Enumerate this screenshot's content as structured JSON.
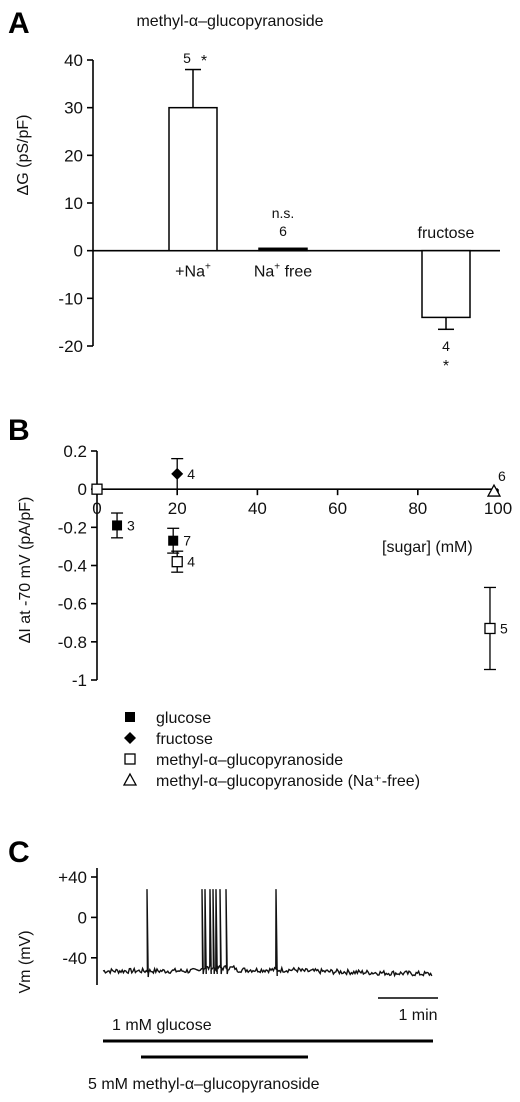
{
  "panels": {
    "a": "A",
    "b": "B",
    "c": "C"
  },
  "chart_data": [
    {
      "type": "bar",
      "title": "methyl-α–glucopyranoside",
      "ylabel": "ΔG (pS/pF)",
      "ylim": [
        -20,
        40
      ],
      "yticks": [
        -20,
        -10,
        0,
        10,
        20,
        30,
        40
      ],
      "categories": [
        "+Na⁺",
        "Na⁺ free",
        "fructose"
      ],
      "values": [
        30,
        0.5,
        -14
      ],
      "errors": [
        8,
        0.3,
        2.5
      ],
      "n_labels": [
        "5",
        "6",
        "4"
      ],
      "sig_labels": [
        "*",
        "n.s.",
        "*"
      ]
    },
    {
      "type": "scatter",
      "xlabel": "[sugar] (mM)",
      "ylabel": "ΔI at -70 mV (pA/pF)",
      "xlim": [
        0,
        100
      ],
      "ylim": [
        -1,
        0.2
      ],
      "xticks": [
        0,
        20,
        40,
        60,
        80,
        100
      ],
      "yticks": [
        -1,
        -0.8,
        -0.6,
        -0.4,
        -0.2,
        0,
        0.2
      ],
      "legend_position": "bottom-left",
      "series": [
        {
          "name": "glucose",
          "marker": "filled-square",
          "points": [
            {
              "x": 0,
              "y": 0,
              "err": 0,
              "n": ""
            },
            {
              "x": 5,
              "y": -0.19,
              "err": 0.065,
              "n": "3"
            },
            {
              "x": 19,
              "y": -0.27,
              "err": 0.065,
              "n": "7"
            }
          ]
        },
        {
          "name": "fructose",
          "marker": "filled-diamond",
          "points": [
            {
              "x": 20,
              "y": 0.08,
              "err": 0.08,
              "n": "4"
            }
          ]
        },
        {
          "name": "methyl-α–glucopyranoside",
          "marker": "open-square",
          "points": [
            {
              "x": 0,
              "y": 0,
              "err": 0,
              "n": ""
            },
            {
              "x": 20,
              "y": -0.38,
              "err": 0.055,
              "n": "4"
            },
            {
              "x": 98,
              "y": -0.73,
              "err": 0.215,
              "n": "5"
            }
          ]
        },
        {
          "name": "methyl-α–glucopyranoside (Na⁺-free)",
          "marker": "open-triangle",
          "points": [
            {
              "x": 99,
              "y": -0.01,
              "err": 0,
              "n": "6"
            }
          ]
        }
      ]
    },
    {
      "type": "line",
      "ylabel": "Vm (mV)",
      "ylim": [
        -60,
        40
      ],
      "yticks": [
        "+40",
        "0",
        "-40"
      ],
      "scale_bar": "1 min",
      "bars": [
        "1 mM glucose",
        "5 mM methyl-α–glucopyranoside"
      ]
    }
  ]
}
